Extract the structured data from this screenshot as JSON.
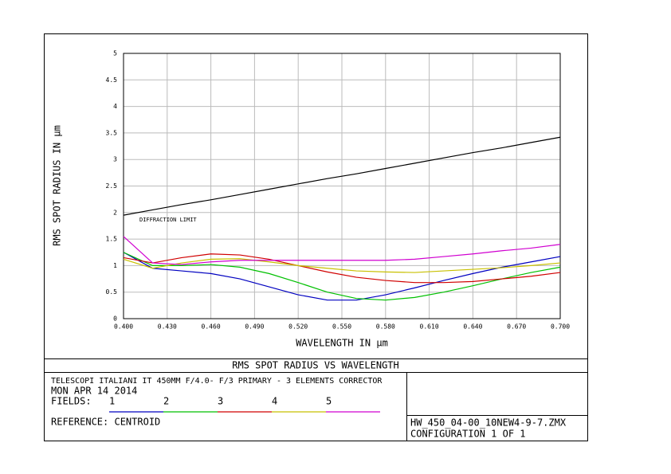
{
  "chart_data": {
    "type": "line",
    "title": "RMS SPOT RADIUS VS WAVELENGTH",
    "xlabel": "WAVELENGTH IN µm",
    "ylabel": "RMS SPOT RADIUS IN µm",
    "x": [
      0.4,
      0.42,
      0.44,
      0.46,
      0.48,
      0.5,
      0.52,
      0.54,
      0.56,
      0.58,
      0.6,
      0.62,
      0.64,
      0.66,
      0.68,
      0.7
    ],
    "series": [
      {
        "name": "DIFFRACTION LIMIT",
        "color": "#000000",
        "values": [
          1.95,
          2.05,
          2.15,
          2.24,
          2.34,
          2.44,
          2.54,
          2.64,
          2.73,
          2.83,
          2.93,
          3.03,
          3.13,
          3.22,
          3.32,
          3.42
        ]
      },
      {
        "name": "1",
        "color": "#0000c0",
        "values": [
          1.25,
          0.95,
          0.9,
          0.85,
          0.75,
          0.6,
          0.45,
          0.35,
          0.35,
          0.45,
          0.58,
          0.72,
          0.85,
          0.97,
          1.07,
          1.17
        ]
      },
      {
        "name": "2",
        "color": "#00c000",
        "values": [
          1.25,
          1.0,
          1.0,
          1.02,
          0.97,
          0.85,
          0.68,
          0.5,
          0.38,
          0.35,
          0.4,
          0.5,
          0.62,
          0.75,
          0.87,
          0.97
        ]
      },
      {
        "name": "3",
        "color": "#d00000",
        "values": [
          1.15,
          1.05,
          1.15,
          1.22,
          1.2,
          1.12,
          1.0,
          0.88,
          0.78,
          0.72,
          0.68,
          0.68,
          0.7,
          0.75,
          0.8,
          0.87
        ]
      },
      {
        "name": "4",
        "color": "#c8c000",
        "values": [
          1.12,
          0.95,
          1.05,
          1.12,
          1.13,
          1.07,
          1.0,
          0.95,
          0.9,
          0.88,
          0.87,
          0.9,
          0.93,
          0.96,
          1.0,
          1.05
        ]
      },
      {
        "name": "5",
        "color": "#d000d0",
        "values": [
          1.55,
          1.05,
          1.02,
          1.07,
          1.1,
          1.1,
          1.1,
          1.1,
          1.1,
          1.1,
          1.12,
          1.17,
          1.22,
          1.28,
          1.33,
          1.4
        ]
      }
    ],
    "xlim": [
      0.4,
      0.7
    ],
    "xticks": [
      {
        "value": 0.4,
        "label": "0.400"
      },
      {
        "value": 0.43,
        "label": "0.430"
      },
      {
        "value": 0.46,
        "label": "0.460"
      },
      {
        "value": 0.49,
        "label": "0.490"
      },
      {
        "value": 0.52,
        "label": "0.520"
      },
      {
        "value": 0.55,
        "label": "0.550"
      },
      {
        "value": 0.58,
        "label": "0.580"
      },
      {
        "value": 0.61,
        "label": "0.610"
      },
      {
        "value": 0.64,
        "label": "0.640"
      },
      {
        "value": 0.67,
        "label": "0.670"
      },
      {
        "value": 0.7,
        "label": "0.700"
      }
    ],
    "ylim": [
      0,
      5
    ],
    "yticks": [
      0,
      0.5,
      1,
      1.5,
      2,
      2.5,
      3,
      3.5,
      4,
      4.5,
      5
    ],
    "grid": true,
    "info_lines": [
      "TELESCOPI ITALIANI IT 450MM F/4.0- F/3 PRIMARY -  3 ELEMENTS CORRECTOR",
      "MON APR 14 2014"
    ],
    "fields_label": "FIELDS:",
    "reference": "REFERENCE: CENTROID",
    "file": "HW_450_04-00_10NEW4-9-7.ZMX",
    "configuration": "CONFIGURATION 1 OF 1"
  }
}
